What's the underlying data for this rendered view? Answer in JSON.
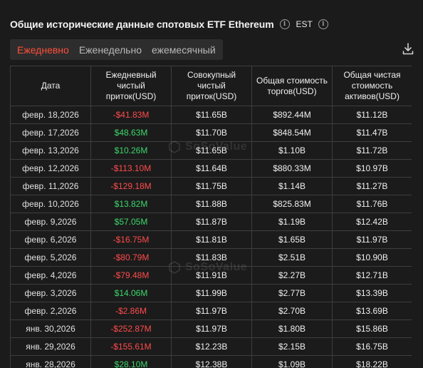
{
  "header": {
    "title": "Общие исторические данные спотовых ETF Ethereum",
    "timezone": "EST"
  },
  "tabs": [
    "Ежедневно",
    "Еженедельно",
    "ежемесячный"
  ],
  "watermark": "SoSoValue",
  "table": {
    "headers": [
      "Дата",
      "Ежедневный чистый приток(USD)",
      "Совокупный чистый приток(USD)",
      "Общая стоимость торгов(USD)",
      "Общая чистая стоимость активов(USD)"
    ],
    "rows": [
      {
        "date": "февр. 18,2026",
        "daily": "-$41.83M",
        "sign": "neg",
        "cum": "$11.65B",
        "trade": "$892.44M",
        "assets": "$11.12B"
      },
      {
        "date": "февр. 17,2026",
        "daily": "$48.63M",
        "sign": "pos",
        "cum": "$11.70B",
        "trade": "$848.54M",
        "assets": "$11.47B"
      },
      {
        "date": "февр. 13,2026",
        "daily": "$10.26M",
        "sign": "pos",
        "cum": "$11.65B",
        "trade": "$1.10B",
        "assets": "$11.72B"
      },
      {
        "date": "февр. 12,2026",
        "daily": "-$113.10M",
        "sign": "neg",
        "cum": "$11.64B",
        "trade": "$880.33M",
        "assets": "$10.97B"
      },
      {
        "date": "февр. 11,2026",
        "daily": "-$129.18M",
        "sign": "neg",
        "cum": "$11.75B",
        "trade": "$1.14B",
        "assets": "$11.27B"
      },
      {
        "date": "февр. 10,2026",
        "daily": "$13.82M",
        "sign": "pos",
        "cum": "$11.88B",
        "trade": "$825.83M",
        "assets": "$11.76B"
      },
      {
        "date": "февр. 9,2026",
        "daily": "$57.05M",
        "sign": "pos",
        "cum": "$11.87B",
        "trade": "$1.19B",
        "assets": "$12.42B"
      },
      {
        "date": "февр. 6,2026",
        "daily": "-$16.75M",
        "sign": "neg",
        "cum": "$11.81B",
        "trade": "$1.65B",
        "assets": "$11.97B"
      },
      {
        "date": "февр. 5,2026",
        "daily": "-$80.79M",
        "sign": "neg",
        "cum": "$11.83B",
        "trade": "$2.51B",
        "assets": "$10.90B"
      },
      {
        "date": "февр. 4,2026",
        "daily": "-$79.48M",
        "sign": "neg",
        "cum": "$11.91B",
        "trade": "$2.27B",
        "assets": "$12.71B"
      },
      {
        "date": "февр. 3,2026",
        "daily": "$14.06M",
        "sign": "pos",
        "cum": "$11.99B",
        "trade": "$2.77B",
        "assets": "$13.39B"
      },
      {
        "date": "февр. 2,2026",
        "daily": "-$2.86M",
        "sign": "neg",
        "cum": "$11.97B",
        "trade": "$2.70B",
        "assets": "$13.69B"
      },
      {
        "date": "янв. 30,2026",
        "daily": "-$252.87M",
        "sign": "neg",
        "cum": "$11.97B",
        "trade": "$1.80B",
        "assets": "$15.86B"
      },
      {
        "date": "янв. 29,2026",
        "daily": "-$155.61M",
        "sign": "neg",
        "cum": "$12.23B",
        "trade": "$2.15B",
        "assets": "$16.75B"
      },
      {
        "date": "янв. 28,2026",
        "daily": "$28.10M",
        "sign": "pos",
        "cum": "$12.38B",
        "trade": "$1.09B",
        "assets": "$18.22B"
      }
    ]
  },
  "colors": {
    "positive": "#3dd66b",
    "negative": "#ff4b4b",
    "active_tab": "#ff4f3a"
  },
  "icons": {
    "info": "info-icon",
    "download": "download-icon",
    "watermark_logo": "hexagon-logo-icon"
  }
}
